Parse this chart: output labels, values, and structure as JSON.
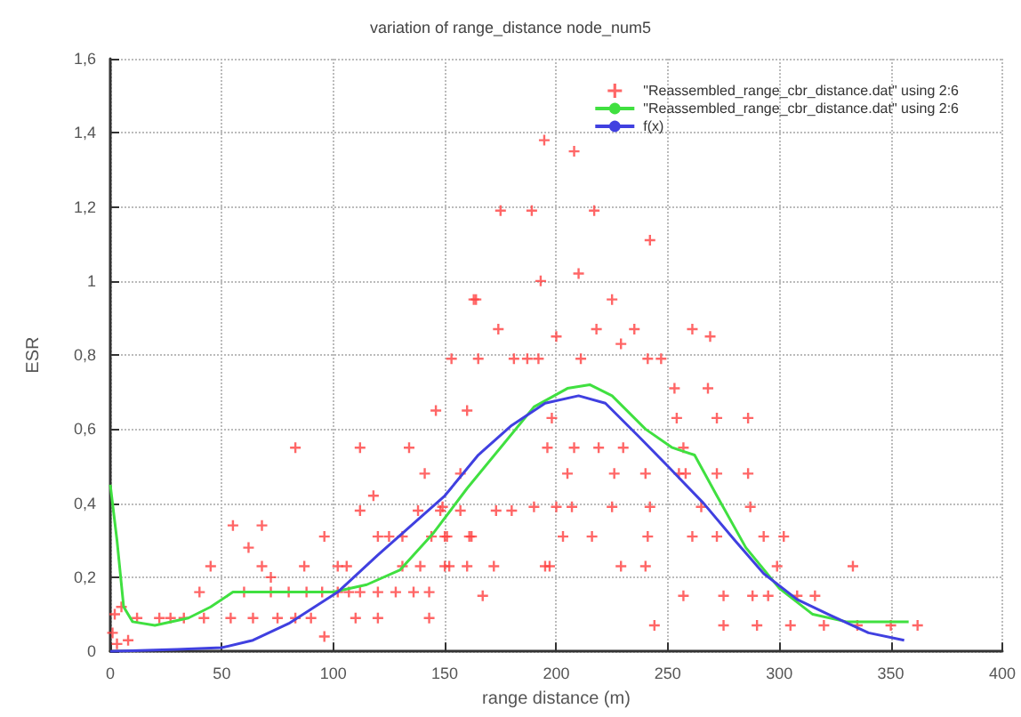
{
  "chart_data": {
    "type": "scatter",
    "title": "variation of range_distance node_num5",
    "xlabel": "range distance (m)",
    "ylabel": "ESR",
    "xlim": [
      0,
      400
    ],
    "xticks": [
      0,
      50,
      100,
      150,
      200,
      250,
      300,
      350,
      400
    ],
    "ylim": [
      0,
      1.6
    ],
    "yticks": [
      0,
      {
        "value": 0.2,
        "label": "0,2"
      },
      {
        "value": 0.4,
        "label": "0,4"
      },
      {
        "value": 0.6,
        "label": "0,6"
      },
      {
        "value": 0.8,
        "label": "0,8"
      },
      1,
      {
        "value": 1.2,
        "label": "1,2"
      },
      {
        "value": 1.4,
        "label": "1,4"
      },
      {
        "value": 1.6,
        "label": "1,6"
      }
    ],
    "grid": true,
    "legend": "top right",
    "series": [
      {
        "name": "\"Reassembled_range_cbr_distance.dat\" using 2:6",
        "marker": "cross",
        "color": "#ff4040",
        "x": [
          1,
          2,
          3,
          5,
          8,
          12,
          22,
          27,
          33,
          42,
          54,
          64,
          75,
          83,
          90,
          96,
          110,
          120,
          143,
          40,
          60,
          72,
          80,
          88,
          95,
          102,
          107,
          112,
          120,
          128,
          136,
          143,
          45,
          68,
          87,
          102,
          106,
          131,
          139,
          152,
          172,
          195,
          72,
          62,
          96,
          120,
          125,
          131,
          144,
          150,
          161,
          55,
          68,
          112,
          138,
          148,
          157,
          173,
          180,
          118,
          141,
          157,
          83,
          112,
          134,
          146,
          160,
          153,
          165,
          181,
          187,
          192,
          164,
          174,
          193,
          175,
          189,
          217,
          242,
          194.6,
          208,
          210,
          163,
          225,
          200,
          218,
          229,
          235,
          261,
          269,
          211,
          241,
          247,
          253,
          268,
          198,
          254,
          272,
          286,
          196,
          208,
          219,
          230,
          257,
          205,
          226,
          240,
          255,
          258,
          272,
          286,
          149,
          190,
          200,
          207,
          225,
          242,
          265,
          287,
          151,
          162,
          203,
          216,
          241,
          261,
          272,
          293,
          302,
          150,
          160,
          197,
          229,
          240,
          299,
          333,
          167,
          257,
          275,
          288,
          295,
          308,
          316,
          244,
          275,
          290,
          305,
          320,
          335,
          350,
          362
        ],
        "values": [
          0.05,
          0.1,
          0.02,
          0.12,
          0.03,
          0.09,
          0.09,
          0.09,
          0.09,
          0.09,
          0.09,
          0.09,
          0.09,
          0.09,
          0.09,
          0.04,
          0.09,
          0.09,
          0.09,
          0.16,
          0.16,
          0.16,
          0.16,
          0.16,
          0.16,
          0.16,
          0.16,
          0.16,
          0.16,
          0.16,
          0.16,
          0.16,
          0.23,
          0.23,
          0.23,
          0.23,
          0.23,
          0.23,
          0.23,
          0.23,
          0.23,
          0.23,
          0.2,
          0.28,
          0.31,
          0.31,
          0.31,
          0.31,
          0.31,
          0.31,
          0.31,
          0.34,
          0.34,
          0.38,
          0.38,
          0.38,
          0.38,
          0.38,
          0.38,
          0.42,
          0.48,
          0.48,
          0.55,
          0.55,
          0.55,
          0.65,
          0.65,
          0.79,
          0.79,
          0.79,
          0.79,
          0.79,
          0.95,
          0.87,
          1.0,
          1.19,
          1.19,
          1.19,
          1.11,
          1.38,
          1.35,
          1.02,
          0.95,
          0.95,
          0.85,
          0.87,
          0.83,
          0.87,
          0.87,
          0.85,
          0.79,
          0.79,
          0.79,
          0.71,
          0.71,
          0.63,
          0.63,
          0.63,
          0.63,
          0.55,
          0.55,
          0.55,
          0.55,
          0.55,
          0.48,
          0.48,
          0.48,
          0.48,
          0.48,
          0.48,
          0.48,
          0.39,
          0.39,
          0.39,
          0.39,
          0.39,
          0.39,
          0.39,
          0.39,
          0.31,
          0.31,
          0.31,
          0.31,
          0.31,
          0.31,
          0.31,
          0.31,
          0.31,
          0.23,
          0.23,
          0.23,
          0.23,
          0.23,
          0.23,
          0.23,
          0.15,
          0.15,
          0.15,
          0.15,
          0.15,
          0.15,
          0.15,
          0.07,
          0.07,
          0.07,
          0.07,
          0.07,
          0.07,
          0.07,
          0.07
        ]
      },
      {
        "name": "\"Reassembled_range_cbr_distance.dat\" using 2:6",
        "type": "line",
        "color": "#40e040",
        "x": [
          0,
          3,
          6,
          10,
          20,
          35,
          45,
          55,
          70,
          100,
          115,
          130,
          145,
          160,
          175,
          190,
          205,
          215,
          225,
          240,
          252,
          262,
          272,
          285,
          300,
          315,
          330,
          345,
          358
        ],
        "values": [
          0.45,
          0.3,
          0.12,
          0.08,
          0.07,
          0.09,
          0.12,
          0.16,
          0.16,
          0.16,
          0.18,
          0.22,
          0.32,
          0.44,
          0.55,
          0.66,
          0.71,
          0.72,
          0.69,
          0.6,
          0.55,
          0.53,
          0.42,
          0.28,
          0.17,
          0.1,
          0.08,
          0.08,
          0.08
        ]
      },
      {
        "name": "f(x)",
        "type": "line",
        "color": "#4040e0",
        "x": [
          0,
          30,
          50,
          64,
          80,
          102,
          120,
          135,
          150,
          165,
          180,
          195,
          210,
          222,
          237,
          250,
          266,
          280,
          293,
          308,
          322,
          340,
          356
        ],
        "values": [
          0,
          0.005,
          0.01,
          0.03,
          0.075,
          0.16,
          0.26,
          0.34,
          0.42,
          0.53,
          0.61,
          0.67,
          0.69,
          0.67,
          0.58,
          0.5,
          0.4,
          0.3,
          0.21,
          0.14,
          0.1,
          0.05,
          0.03
        ]
      }
    ]
  }
}
